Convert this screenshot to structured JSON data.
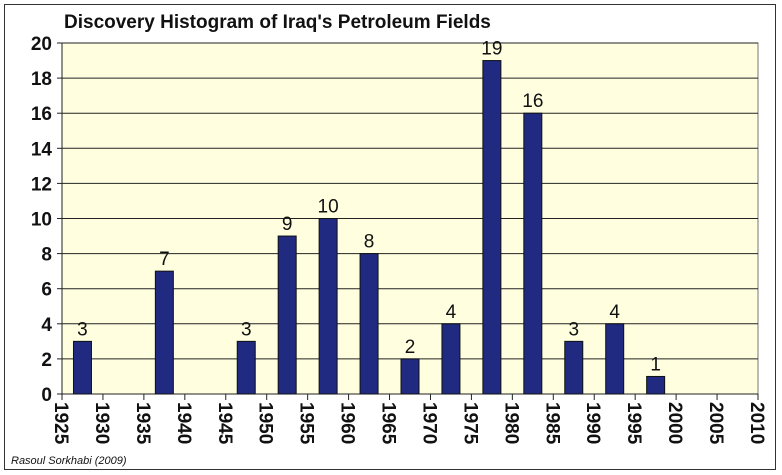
{
  "chart_data": {
    "type": "bar",
    "title": "Discovery Histogram of Iraq's Petroleum Fields",
    "credit": "Rasoul Sorkhabi (2009)",
    "xlabel": "",
    "ylabel": "",
    "ylim": [
      0,
      20
    ],
    "yticks": [
      0,
      2,
      4,
      6,
      8,
      10,
      12,
      14,
      16,
      18,
      20
    ],
    "xticks": [
      1925,
      1930,
      1935,
      1940,
      1945,
      1950,
      1955,
      1960,
      1965,
      1970,
      1975,
      1980,
      1985,
      1990,
      1995,
      2000,
      2005,
      2010
    ],
    "bins": [
      {
        "start": 1925,
        "value": 3
      },
      {
        "start": 1935,
        "value": 7
      },
      {
        "start": 1945,
        "value": 3
      },
      {
        "start": 1950,
        "value": 9
      },
      {
        "start": 1955,
        "value": 10
      },
      {
        "start": 1960,
        "value": 8
      },
      {
        "start": 1965,
        "value": 2
      },
      {
        "start": 1970,
        "value": 4
      },
      {
        "start": 1975,
        "value": 19
      },
      {
        "start": 1980,
        "value": 16
      },
      {
        "start": 1985,
        "value": 3
      },
      {
        "start": 1990,
        "value": 4
      },
      {
        "start": 1995,
        "value": 1
      }
    ],
    "bin_width": 5,
    "grid": true,
    "colors": {
      "bar": "#1f2a80",
      "plot_bg": "#ffffe0"
    }
  }
}
